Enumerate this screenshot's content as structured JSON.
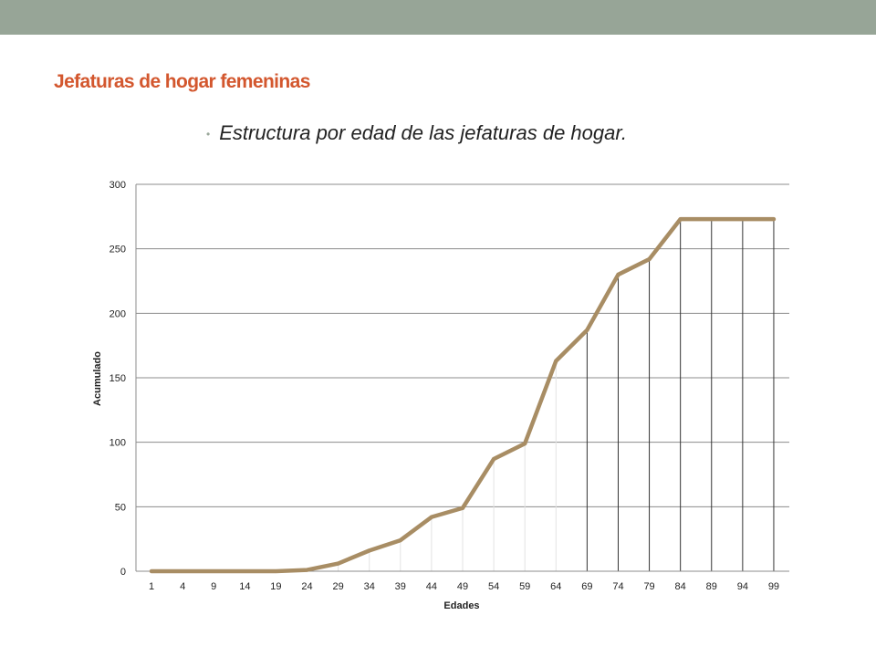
{
  "slide": {
    "title": "Jefaturas de hogar femeninas",
    "bullet": "Estructura por edad de las jefaturas de hogar."
  },
  "colors": {
    "topbar": "#97a597",
    "title": "#d3572e",
    "line": "#a88d64",
    "grid": "#8c8c8c"
  },
  "chart_data": {
    "type": "line",
    "xlabel": "Edades",
    "ylabel": "Acumulado",
    "ylim": [
      0,
      300
    ],
    "yticks": [
      0,
      50,
      100,
      150,
      200,
      250,
      300
    ],
    "grid": true,
    "categories": [
      "1",
      "4",
      "9",
      "14",
      "19",
      "24",
      "29",
      "34",
      "39",
      "44",
      "49",
      "54",
      "59",
      "64",
      "69",
      "74",
      "79",
      "84",
      "89",
      "94",
      "99"
    ],
    "series": [
      {
        "values": [
          0,
          0,
          0,
          0,
          0,
          1,
          6,
          16,
          24,
          42,
          49,
          87,
          99,
          163,
          187,
          230,
          242,
          273,
          273,
          273,
          273
        ]
      }
    ]
  }
}
